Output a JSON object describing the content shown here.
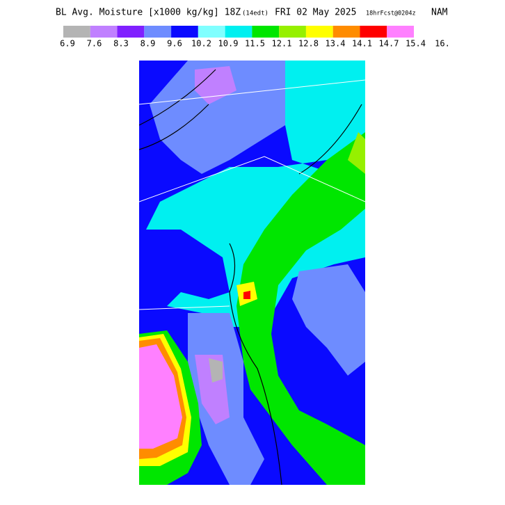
{
  "header": {
    "title_main": "BL Avg. Moisture [x1000 kg/kg] 18Z",
    "title_local": "(14edt)",
    "title_date": "FRI 02 May 2025",
    "title_fcst": "18hrFcst@0204z",
    "title_model": "NAM"
  },
  "legend": {
    "colors": [
      "#b4b4b4",
      "#c080ff",
      "#8020ff",
      "#6e8cff",
      "#0a0aff",
      "#80ffff",
      "#00f0f0",
      "#00e600",
      "#96f000",
      "#ffff00",
      "#ff8c00",
      "#ff0000",
      "#ff80ff"
    ],
    "labels": [
      "6.9",
      "7.6",
      "8.3",
      "8.9",
      "9.6",
      "10.2",
      "10.9",
      "11.5",
      "12.1",
      "12.8",
      "13.4",
      "14.1",
      "14.7",
      "15.4",
      "16."
    ]
  }
}
